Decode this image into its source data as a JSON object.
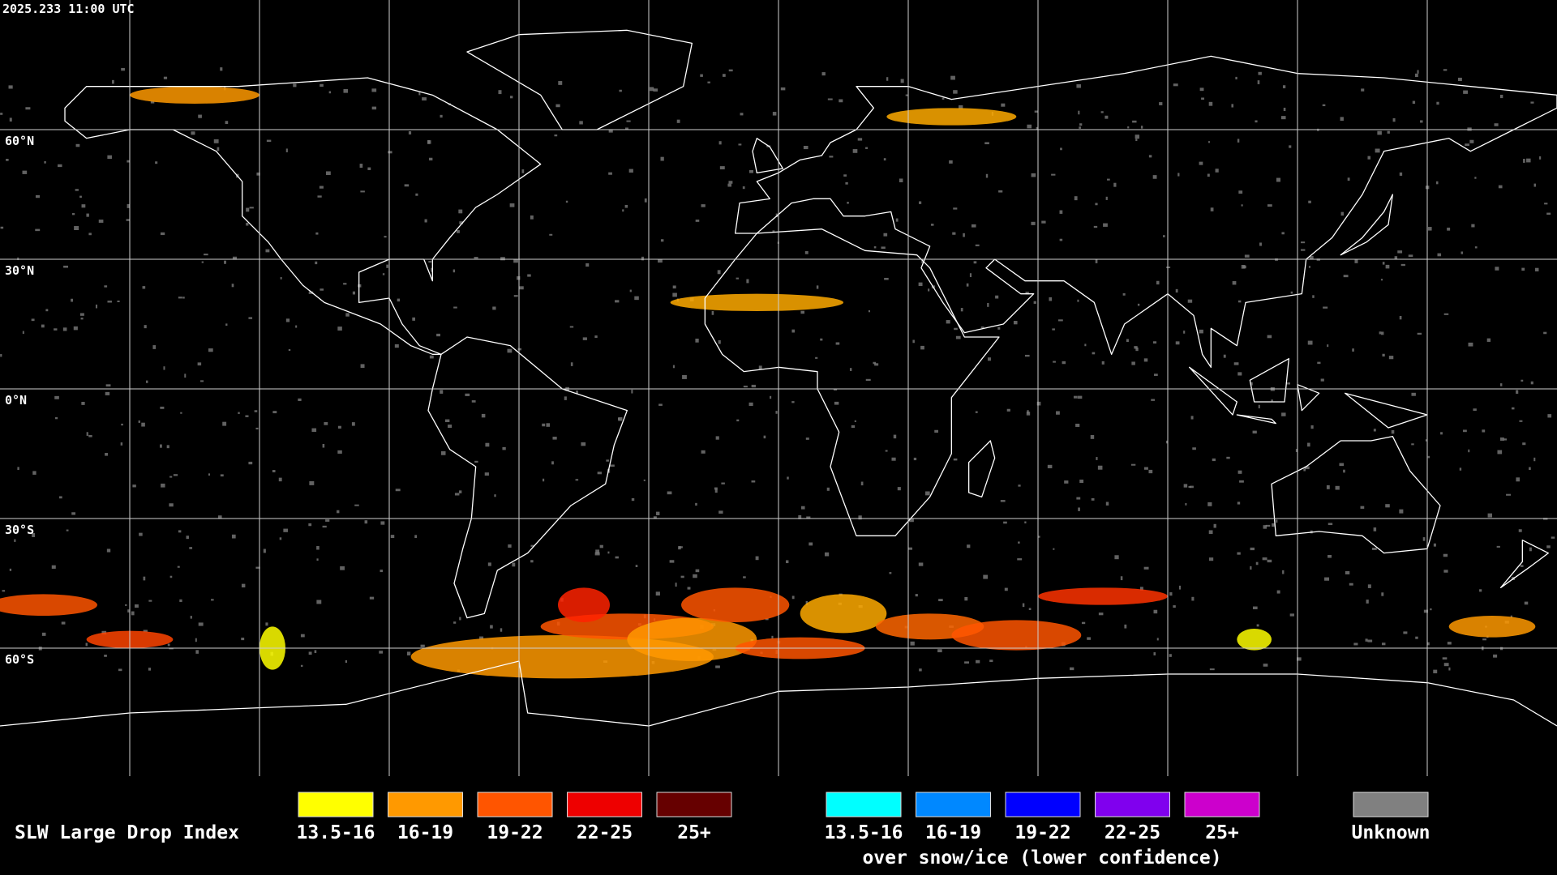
{
  "timestamp": "2025.233 11:00 UTC",
  "map": {
    "latitude_labels": [
      "60°N",
      "30°N",
      "0°N",
      "30°S",
      "60°S"
    ]
  },
  "legend": {
    "title": "SLW Large Drop Index",
    "items": [
      {
        "label": "13.5-16",
        "color": "#ffff00"
      },
      {
        "label": "16-19",
        "color": "#ff9900"
      },
      {
        "label": "19-22",
        "color": "#ff5500"
      },
      {
        "label": "22-25",
        "color": "#ee0000"
      },
      {
        "label": "25+",
        "color": "#660000"
      }
    ],
    "snow_ice_items": [
      {
        "label": "13.5-16",
        "color": "#00ffff"
      },
      {
        "label": "16-19",
        "color": "#0088ff"
      },
      {
        "label": "19-22",
        "color": "#0000ff"
      },
      {
        "label": "22-25",
        "color": "#8000ee"
      },
      {
        "label": "25+",
        "color": "#cc00cc"
      }
    ],
    "snow_ice_caption": "over snow/ice (lower confidence)",
    "unknown": {
      "label": "Unknown",
      "color": "#808080"
    }
  }
}
